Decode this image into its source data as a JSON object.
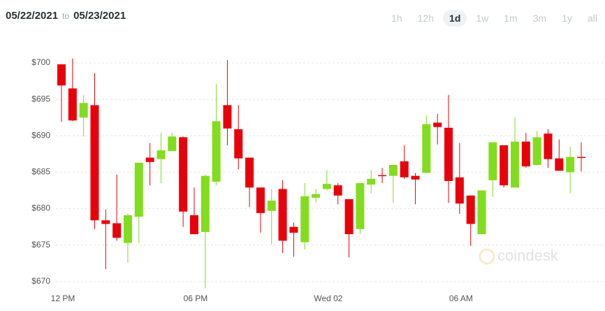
{
  "header": {
    "from": "05/22/2021",
    "separator": "to",
    "to": "05/23/2021"
  },
  "range_buttons": [
    "1h",
    "12h",
    "1d",
    "1w",
    "1m",
    "3m",
    "1y",
    "all"
  ],
  "selected_range": "1d",
  "watermark": "coindesk",
  "chart_data": {
    "type": "candlestick",
    "categories": [
      "12 PM",
      null,
      null,
      null,
      null,
      null,
      null,
      null,
      null,
      null,
      null,
      null,
      "06 PM",
      null,
      null,
      null,
      null,
      null,
      null,
      null,
      null,
      null,
      null,
      null,
      "Wed 02",
      null,
      null,
      null,
      null,
      null,
      null,
      null,
      null,
      null,
      null,
      null,
      "06 AM",
      null,
      null,
      null,
      null,
      null,
      null,
      null,
      null,
      null,
      null,
      null
    ],
    "open": [
      699.8,
      696.5,
      692.5,
      694.2,
      678.4,
      678.0,
      675.3,
      678.9,
      687.0,
      686.8,
      687.9,
      689.8,
      679.1,
      676.8,
      683.7,
      694.2,
      690.9,
      687.0,
      682.9,
      679.7,
      682.7,
      677.5,
      675.4,
      681.5,
      682.7,
      683.2,
      681.3,
      677.2,
      683.3,
      684.6,
      684.5,
      686.5,
      684.5,
      684.9,
      691.8,
      691.1,
      684.3,
      681.8,
      676.5,
      683.9,
      688.7,
      682.9,
      689.2,
      686.0,
      690.3,
      686.9,
      685.0,
      687.1
    ],
    "high": [
      699.8,
      700.6,
      695.6,
      698.6,
      679.9,
      684.7,
      679.3,
      686.3,
      689.0,
      690.4,
      690.4,
      689.9,
      682.9,
      684.7,
      697.1,
      700.4,
      694.2,
      687.0,
      682.9,
      682.7,
      683.9,
      678.1,
      683.5,
      682.7,
      685.3,
      683.5,
      681.3,
      683.5,
      685.3,
      685.6,
      686.0,
      688.7,
      684.9,
      692.8,
      693.0,
      695.6,
      689.0,
      681.8,
      682.5,
      689.1,
      688.7,
      692.5,
      690.4,
      690.7,
      690.9,
      689.5,
      688.5,
      689.1
    ],
    "low": [
      691.9,
      692.0,
      689.9,
      677.2,
      671.7,
      675.6,
      672.6,
      675.3,
      683.2,
      683.5,
      687.9,
      677.5,
      676.5,
      669.1,
      683.2,
      688.7,
      685.4,
      680.2,
      676.7,
      675.1,
      673.9,
      673.4,
      674.4,
      680.8,
      682.5,
      680.6,
      673.3,
      676.5,
      682.1,
      683.5,
      680.8,
      684.1,
      680.6,
      684.9,
      688.8,
      680.8,
      679.3,
      674.9,
      676.5,
      681.6,
      682.9,
      682.9,
      685.6,
      685.9,
      685.6,
      685.2,
      682.1,
      685.1
    ],
    "close": [
      696.9,
      692.1,
      694.5,
      678.4,
      677.9,
      676.0,
      679.1,
      686.3,
      686.4,
      688.0,
      689.9,
      679.6,
      676.5,
      684.5,
      692.0,
      691.0,
      686.9,
      682.9,
      679.4,
      681.1,
      675.6,
      676.7,
      681.7,
      682.0,
      683.4,
      681.8,
      676.5,
      683.5,
      684.1,
      684.5,
      686.0,
      684.3,
      684.0,
      691.6,
      691.2,
      683.8,
      680.7,
      677.9,
      682.5,
      689.1,
      683.2,
      689.2,
      685.8,
      689.8,
      686.8,
      685.2,
      687.1,
      687.0
    ],
    "up_color": "#82dd1f",
    "down_color": "#e8000b",
    "ylim": [
      668.5,
      703
    ],
    "yticks": [
      {
        "value": 670,
        "label": "$670"
      },
      {
        "value": 675,
        "label": "$675"
      },
      {
        "value": 680,
        "label": "$680"
      },
      {
        "value": 685,
        "label": "$685"
      },
      {
        "value": 690,
        "label": "$690"
      },
      {
        "value": 695,
        "label": "$695"
      },
      {
        "value": 700,
        "label": "$700"
      }
    ],
    "grid": true
  }
}
